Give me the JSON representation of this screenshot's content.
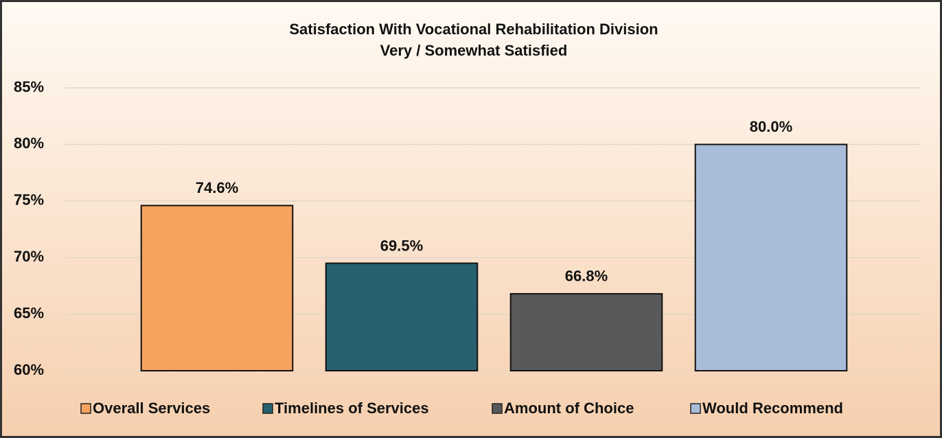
{
  "chart_data": {
    "type": "bar",
    "title": "Satisfaction With Vocational Rehabilitation Division",
    "subtitle": "Very / Somewhat Satisfied",
    "categories": [
      "Overall Services",
      "Timelines of Services",
      "Amount of Choice",
      "Would Recommend"
    ],
    "values": [
      74.6,
      69.5,
      66.8,
      80.0
    ],
    "value_labels": [
      "74.6%",
      "69.5%",
      "66.8%",
      "80.0%"
    ],
    "colors": [
      "#f5a35f",
      "#27606f",
      "#595959",
      "#a9bcd9"
    ],
    "ylim": [
      60,
      85
    ],
    "yticks": [
      {
        "value": 60,
        "label": "60%"
      },
      {
        "value": 65,
        "label": "65%"
      },
      {
        "value": 70,
        "label": "70%"
      },
      {
        "value": 75,
        "label": "75%"
      },
      {
        "value": 80,
        "label": "80%"
      },
      {
        "value": 85,
        "label": "85%"
      }
    ],
    "grid": true,
    "legend": "bottom"
  }
}
